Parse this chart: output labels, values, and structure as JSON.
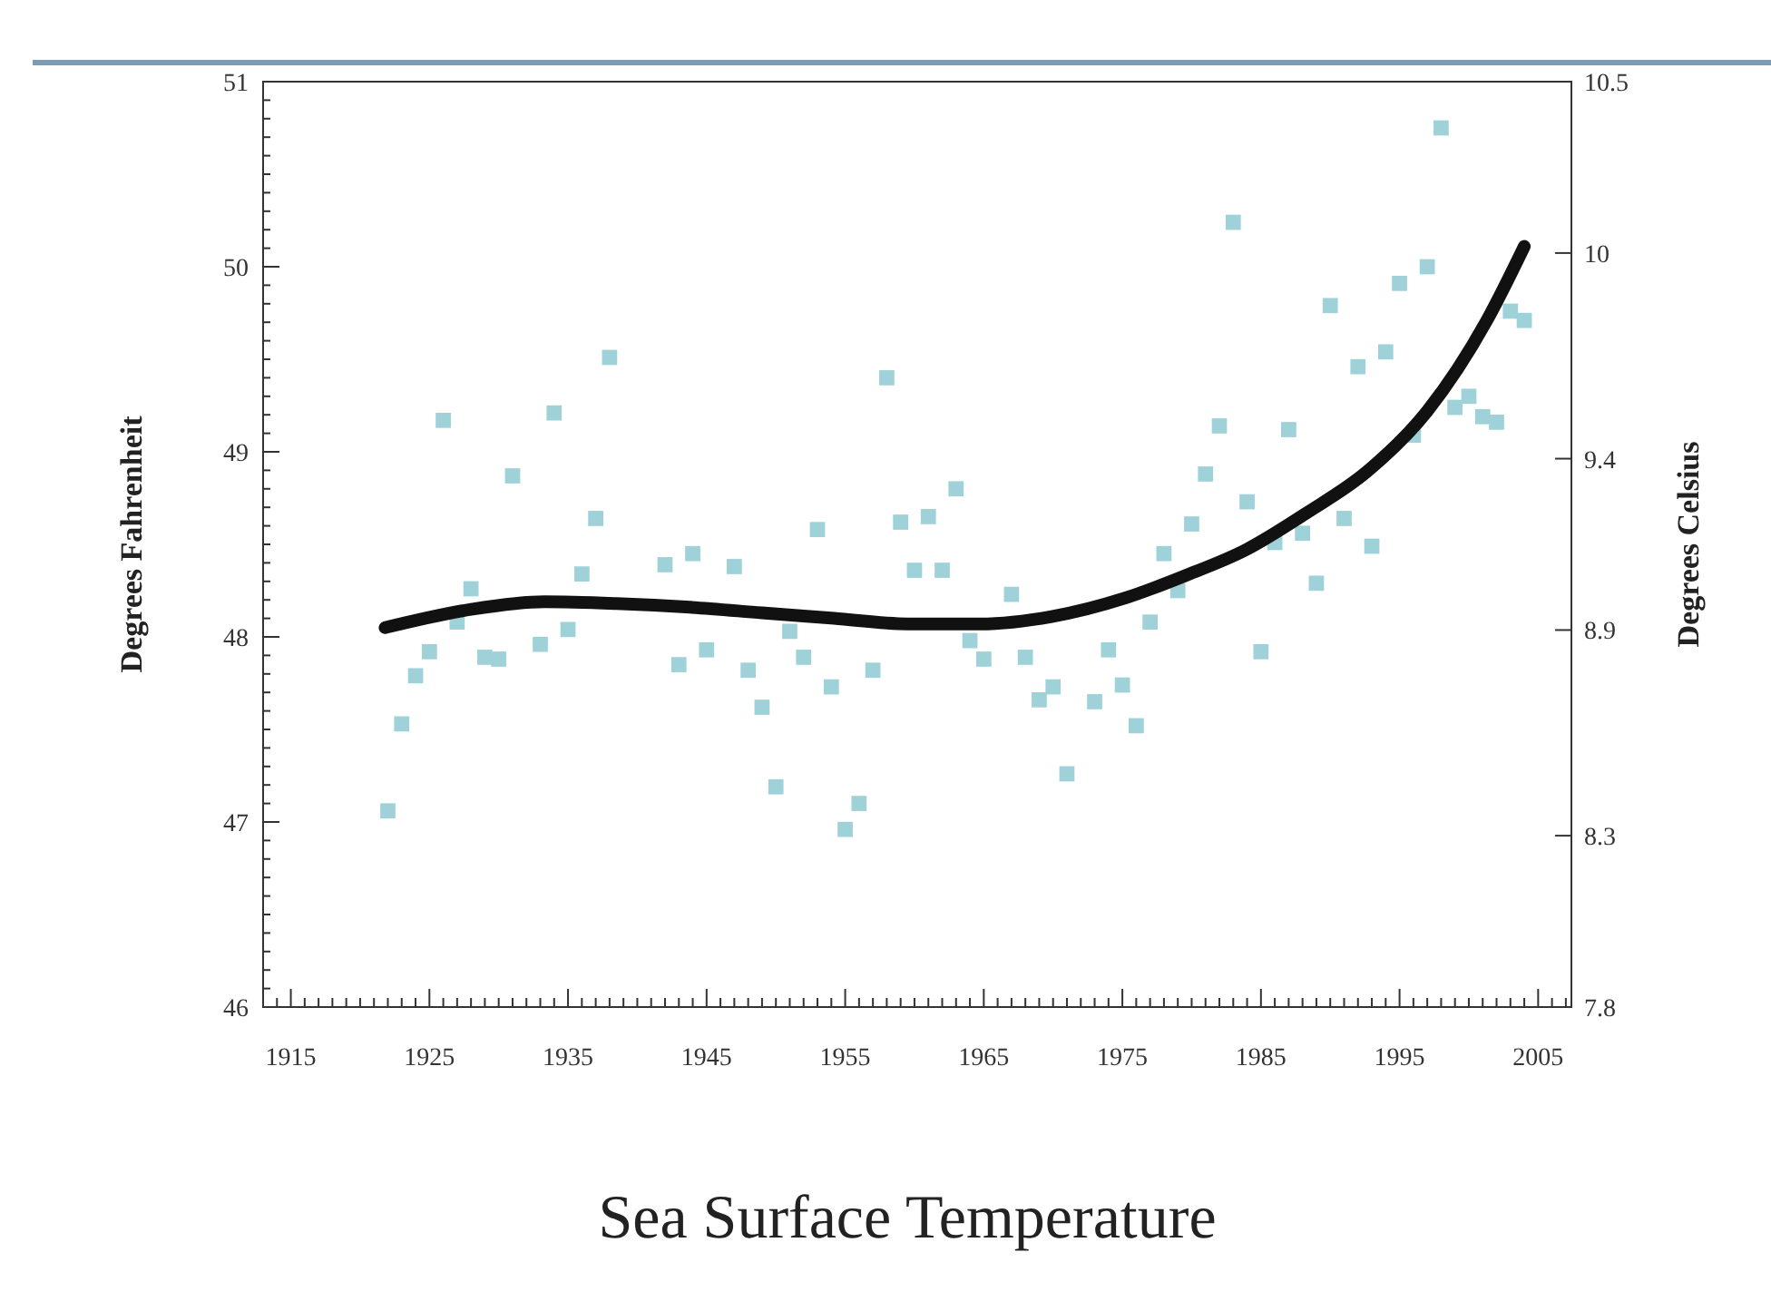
{
  "chart_data": {
    "type": "scatter",
    "title": "Sea Surface Temperature",
    "ylabel": "Degrees Fahrenheit",
    "y2label": "Degrees Celsius",
    "xlim": [
      1913,
      2007.4
    ],
    "ylim": [
      46,
      51
    ],
    "y2lim": [
      7.8,
      10.5
    ],
    "xticks": [
      {
        "value": 1913,
        "label": null
      },
      {
        "value": 1914,
        "label": null
      },
      1915,
      {
        "value": 1916,
        "label": null
      },
      {
        "value": 1917,
        "label": null
      },
      {
        "value": 1918,
        "label": null
      },
      {
        "value": 1919,
        "label": null
      },
      {
        "value": 1920,
        "label": null
      },
      {
        "value": 1921,
        "label": null
      },
      {
        "value": 1922,
        "label": null
      },
      {
        "value": 1923,
        "label": null
      },
      {
        "value": 1924,
        "label": null
      },
      1925,
      {
        "value": 1926,
        "label": null
      },
      {
        "value": 1927,
        "label": null
      },
      {
        "value": 1928,
        "label": null
      },
      {
        "value": 1929,
        "label": null
      },
      {
        "value": 1930,
        "label": null
      },
      {
        "value": 1931,
        "label": null
      },
      {
        "value": 1932,
        "label": null
      },
      {
        "value": 1933,
        "label": null
      },
      {
        "value": 1934,
        "label": null
      },
      1935,
      {
        "value": 1936,
        "label": null
      },
      {
        "value": 1937,
        "label": null
      },
      {
        "value": 1938,
        "label": null
      },
      {
        "value": 1939,
        "label": null
      },
      {
        "value": 1940,
        "label": null
      },
      {
        "value": 1941,
        "label": null
      },
      {
        "value": 1942,
        "label": null
      },
      {
        "value": 1943,
        "label": null
      },
      {
        "value": 1944,
        "label": null
      },
      1945,
      {
        "value": 1946,
        "label": null
      },
      {
        "value": 1947,
        "label": null
      },
      {
        "value": 1948,
        "label": null
      },
      {
        "value": 1949,
        "label": null
      },
      {
        "value": 1950,
        "label": null
      },
      {
        "value": 1951,
        "label": null
      },
      {
        "value": 1952,
        "label": null
      },
      {
        "value": 1953,
        "label": null
      },
      {
        "value": 1954,
        "label": null
      },
      1955,
      {
        "value": 1956,
        "label": null
      },
      {
        "value": 1957,
        "label": null
      },
      {
        "value": 1958,
        "label": null
      },
      {
        "value": 1959,
        "label": null
      },
      {
        "value": 1960,
        "label": null
      },
      {
        "value": 1961,
        "label": null
      },
      {
        "value": 1962,
        "label": null
      },
      {
        "value": 1963,
        "label": null
      },
      {
        "value": 1964,
        "label": null
      },
      1965,
      {
        "value": 1966,
        "label": null
      },
      {
        "value": 1967,
        "label": null
      },
      {
        "value": 1968,
        "label": null
      },
      {
        "value": 1969,
        "label": null
      },
      {
        "value": 1970,
        "label": null
      },
      {
        "value": 1971,
        "label": null
      },
      {
        "value": 1972,
        "label": null
      },
      {
        "value": 1973,
        "label": null
      },
      {
        "value": 1974,
        "label": null
      },
      1975,
      {
        "value": 1976,
        "label": null
      },
      {
        "value": 1977,
        "label": null
      },
      {
        "value": 1978,
        "label": null
      },
      {
        "value": 1979,
        "label": null
      },
      {
        "value": 1980,
        "label": null
      },
      {
        "value": 1981,
        "label": null
      },
      {
        "value": 1982,
        "label": null
      },
      {
        "value": 1983,
        "label": null
      },
      {
        "value": 1984,
        "label": null
      },
      1985,
      {
        "value": 1986,
        "label": null
      },
      {
        "value": 1987,
        "label": null
      },
      {
        "value": 1988,
        "label": null
      },
      {
        "value": 1989,
        "label": null
      },
      {
        "value": 1990,
        "label": null
      },
      {
        "value": 1991,
        "label": null
      },
      {
        "value": 1992,
        "label": null
      },
      {
        "value": 1993,
        "label": null
      },
      {
        "value": 1994,
        "label": null
      },
      1995,
      {
        "value": 1996,
        "label": null
      },
      {
        "value": 1997,
        "label": null
      },
      {
        "value": 1998,
        "label": null
      },
      {
        "value": 1999,
        "label": null
      },
      {
        "value": 2000,
        "label": null
      },
      {
        "value": 2001,
        "label": null
      },
      {
        "value": 2002,
        "label": null
      },
      {
        "value": 2003,
        "label": null
      },
      {
        "value": 2004,
        "label": null
      },
      2005,
      {
        "value": 2006,
        "label": null
      },
      {
        "value": 2007,
        "label": null
      }
    ],
    "yticks": [
      46,
      {
        "value": 46.1,
        "label": null
      },
      {
        "value": 46.2,
        "label": null
      },
      {
        "value": 46.3,
        "label": null
      },
      {
        "value": 46.4,
        "label": null
      },
      {
        "value": 46.5,
        "label": null
      },
      {
        "value": 46.6,
        "label": null
      },
      {
        "value": 46.7,
        "label": null
      },
      {
        "value": 46.8,
        "label": null
      },
      {
        "value": 46.9,
        "label": null
      },
      47,
      {
        "value": 47.1,
        "label": null
      },
      {
        "value": 47.2,
        "label": null
      },
      {
        "value": 47.3,
        "label": null
      },
      {
        "value": 47.4,
        "label": null
      },
      {
        "value": 47.5,
        "label": null
      },
      {
        "value": 47.6,
        "label": null
      },
      {
        "value": 47.7,
        "label": null
      },
      {
        "value": 47.8,
        "label": null
      },
      {
        "value": 47.9,
        "label": null
      },
      48,
      {
        "value": 48.1,
        "label": null
      },
      {
        "value": 48.2,
        "label": null
      },
      {
        "value": 48.3,
        "label": null
      },
      {
        "value": 48.4,
        "label": null
      },
      {
        "value": 48.5,
        "label": null
      },
      {
        "value": 48.6,
        "label": null
      },
      {
        "value": 48.7,
        "label": null
      },
      {
        "value": 48.8,
        "label": null
      },
      {
        "value": 48.9,
        "label": null
      },
      49,
      {
        "value": 49.1,
        "label": null
      },
      {
        "value": 49.2,
        "label": null
      },
      {
        "value": 49.3,
        "label": null
      },
      {
        "value": 49.4,
        "label": null
      },
      {
        "value": 49.5,
        "label": null
      },
      {
        "value": 49.6,
        "label": null
      },
      {
        "value": 49.7,
        "label": null
      },
      {
        "value": 49.8,
        "label": null
      },
      {
        "value": 49.9,
        "label": null
      },
      50,
      {
        "value": 50.1,
        "label": null
      },
      {
        "value": 50.2,
        "label": null
      },
      {
        "value": 50.3,
        "label": null
      },
      {
        "value": 50.4,
        "label": null
      },
      {
        "value": 50.5,
        "label": null
      },
      {
        "value": 50.6,
        "label": null
      },
      {
        "value": 50.7,
        "label": null
      },
      {
        "value": 50.8,
        "label": null
      },
      {
        "value": 50.9,
        "label": null
      },
      51
    ],
    "y2ticks": [
      7.8,
      8.3,
      8.9,
      9.4,
      10,
      10.5
    ],
    "series": [
      {
        "marker": "square",
        "color": "#9ed2d8",
        "x": [
          1922,
          1923,
          1924,
          1925,
          1926,
          1927,
          1928,
          1929,
          1930,
          1931,
          1933,
          1934,
          1935,
          1936,
          1937,
          1938,
          1942,
          1943,
          1944,
          1945,
          1947,
          1948,
          1949,
          1950,
          1951,
          1952,
          1953,
          1954,
          1955,
          1956,
          1957,
          1958,
          1959,
          1960,
          1961,
          1962,
          1963,
          1964,
          1965,
          1967,
          1968,
          1969,
          1970,
          1971,
          1973,
          1974,
          1975,
          1976,
          1977,
          1978,
          1979,
          1980,
          1981,
          1982,
          1983,
          1984,
          1985,
          1986,
          1987,
          1988,
          1989,
          1990,
          1991,
          1992,
          1993,
          1994,
          1995,
          1996,
          1997,
          1998,
          1999,
          2000,
          2001,
          2002,
          2003,
          2004
        ],
        "values": [
          47.06,
          47.53,
          47.79,
          47.92,
          49.17,
          48.08,
          48.26,
          47.89,
          47.88,
          48.87,
          47.96,
          49.21,
          48.04,
          48.34,
          48.64,
          49.51,
          48.39,
          47.85,
          48.45,
          47.93,
          48.38,
          47.82,
          47.62,
          47.19,
          48.03,
          47.89,
          48.58,
          47.73,
          46.96,
          47.1,
          47.82,
          49.4,
          48.62,
          48.36,
          48.65,
          48.36,
          48.8,
          47.98,
          47.88,
          48.23,
          47.89,
          47.66,
          47.73,
          47.26,
          47.65,
          47.93,
          47.74,
          47.52,
          48.08,
          48.45,
          48.25,
          48.61,
          48.88,
          49.14,
          50.24,
          48.73,
          47.92,
          48.51,
          49.12,
          48.56,
          48.29,
          49.79,
          48.64,
          49.46,
          48.49,
          49.54,
          49.91,
          49.09,
          50.0,
          50.75,
          49.24,
          49.3,
          49.19,
          49.16,
          49.76,
          49.71
        ]
      },
      {
        "type": "line",
        "color": "#111111",
        "line_style": "solid",
        "x": [
          1921.8,
          1928.1,
          1933.3,
          1938.5,
          1943.8,
          1949,
          1954.2,
          1959.5,
          1964.7,
          1969.9,
          1975.2,
          1979.5,
          1983.9,
          1988.3,
          1992.6,
          1997,
          2001.3,
          2004
        ],
        "values": [
          48.05,
          48.15,
          48.19,
          48.18,
          48.16,
          48.13,
          48.1,
          48.07,
          48.07,
          48.11,
          48.21,
          48.33,
          48.47,
          48.67,
          48.89,
          49.22,
          49.71,
          50.11
        ]
      }
    ]
  }
}
